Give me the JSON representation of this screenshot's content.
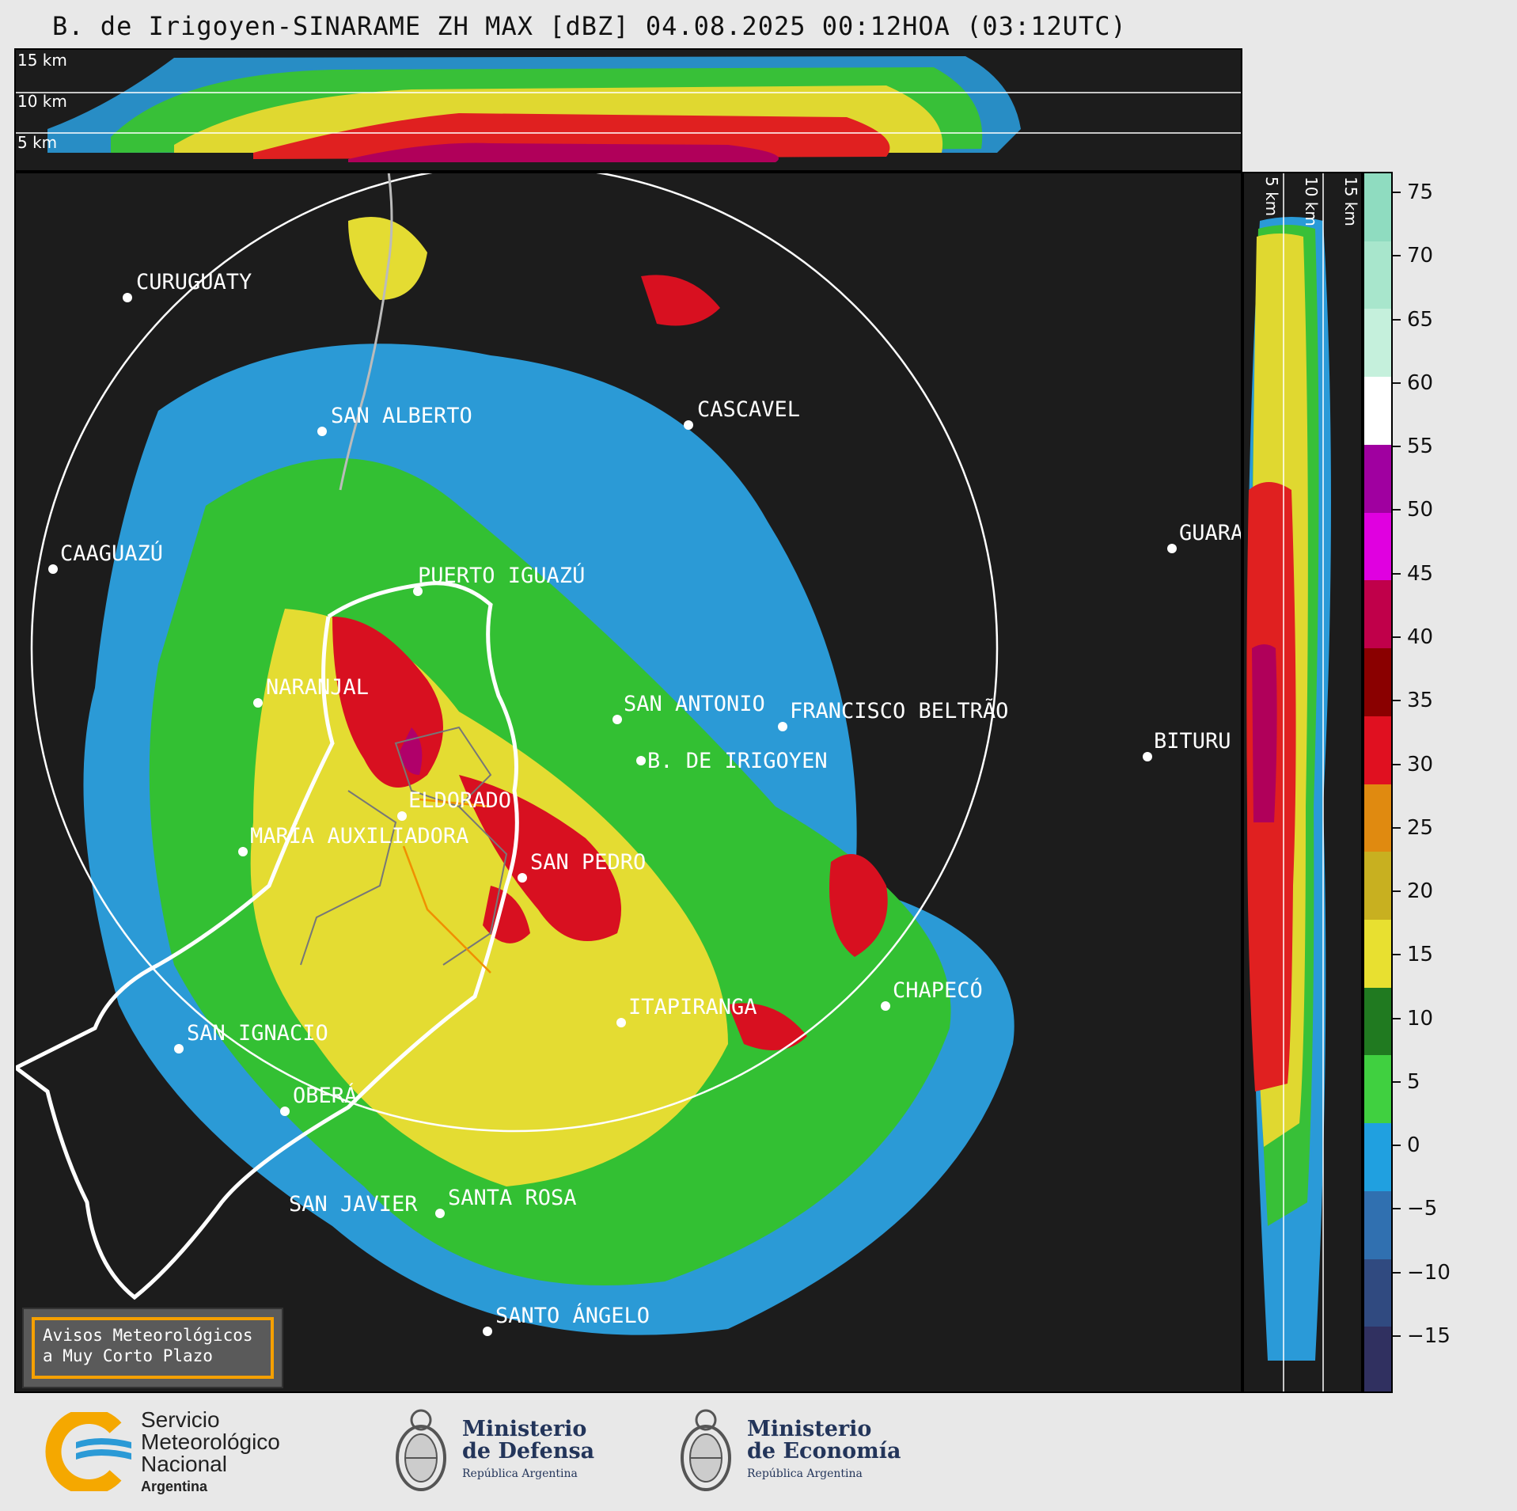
{
  "title": "B. de Irigoyen-SINARAME ZH MAX [dBZ] 04.08.2025 00:12HOA (03:12UTC)",
  "top_panel": {
    "levels": [
      "15 km",
      "10 km",
      "5 km"
    ]
  },
  "right_panel": {
    "levels": [
      "5 km",
      "10 km",
      "15 km"
    ]
  },
  "cities": [
    {
      "name": "CURUGUATY"
    },
    {
      "name": "SAN ALBERTO"
    },
    {
      "name": "CASCAVEL"
    },
    {
      "name": "CAAGUAZÚ"
    },
    {
      "name": "PUERTO IGUAZÚ"
    },
    {
      "name": "GUARA"
    },
    {
      "name": "NARANJAL"
    },
    {
      "name": "SAN ANTONIO"
    },
    {
      "name": "FRANCISCO BELTRÃO"
    },
    {
      "name": "B. DE IRIGOYEN"
    },
    {
      "name": "BITURU"
    },
    {
      "name": "ELDORADO"
    },
    {
      "name": "MARÍA AUXILIADORA"
    },
    {
      "name": "SAN PEDRO"
    },
    {
      "name": "CHAPECÓ"
    },
    {
      "name": "ITAPIRANGA"
    },
    {
      "name": "SAN IGNACIO"
    },
    {
      "name": "OBERÁ"
    },
    {
      "name": "SAN JAVIER"
    },
    {
      "name": "SANTA ROSA"
    },
    {
      "name": "SANTO ÁNGELO"
    }
  ],
  "colorbar": {
    "ticks": [
      "75",
      "70",
      "65",
      "60",
      "55",
      "50",
      "45",
      "40",
      "35",
      "30",
      "25",
      "20",
      "15",
      "10",
      "5",
      "0",
      "−5",
      "−10",
      "−15"
    ],
    "colors": [
      "#8fdcc0",
      "#a8e6cc",
      "#c5f0dc",
      "#ffffff",
      "#a000a0",
      "#e000e0",
      "#c0004a",
      "#8a0000",
      "#e01020",
      "#e08a10",
      "#c8b020",
      "#e8e030",
      "#207a20",
      "#40d040",
      "#20a0e0",
      "#3070b0",
      "#304a80",
      "#303060"
    ]
  },
  "avisos": {
    "line1": "Avisos Meteorológicos",
    "line2": "a Muy Corto Plazo"
  },
  "footer": {
    "smn_line1": "Servicio",
    "smn_line2": "Meteorológico",
    "smn_line3": "Nacional",
    "smn_line4": "Argentina",
    "defensa_line1": "Ministerio",
    "defensa_line2": "de Defensa",
    "defensa_sub": "República Argentina",
    "economia_line1": "Ministerio",
    "economia_line2": "de Economía",
    "economia_sub": "República Argentina"
  }
}
